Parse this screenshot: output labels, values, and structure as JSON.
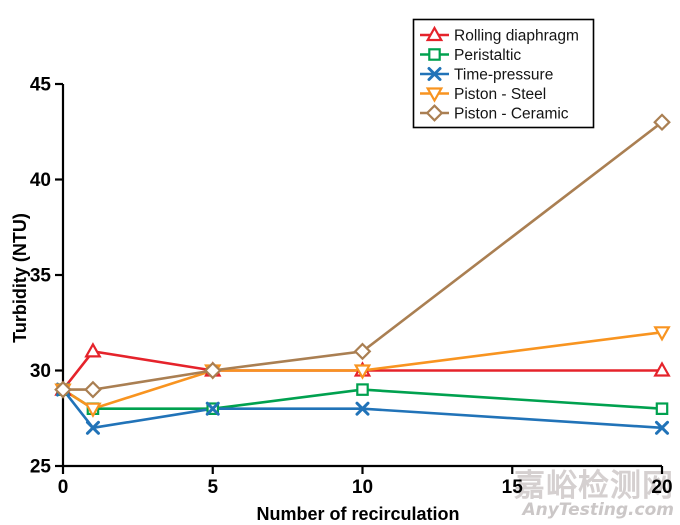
{
  "watermark": {
    "line1": "嘉峪检测网",
    "line2": "AnyTesting.com"
  },
  "chart_data": {
    "type": "line",
    "title": "",
    "xlabel": "Number of recirculation",
    "ylabel": "Turbidity (NTU)",
    "x": [
      0,
      1,
      5,
      10,
      20
    ],
    "xlim": [
      0,
      20
    ],
    "ylim": [
      25,
      45
    ],
    "xticks": [
      0,
      5,
      10,
      15,
      20
    ],
    "yticks": [
      25,
      30,
      35,
      40,
      45
    ],
    "grid": false,
    "legend_position": "top-right-inside",
    "axis_color": "#000000",
    "series": [
      {
        "name": "Rolling diaphragm",
        "color": "#e5232b",
        "marker": "triangle-up",
        "values": [
          29,
          31,
          30,
          30,
          30
        ]
      },
      {
        "name": "Peristaltic",
        "color": "#00a14f",
        "marker": "square",
        "values": [
          29,
          28,
          28,
          29,
          28
        ]
      },
      {
        "name": "Time-pressure",
        "color": "#2173b8",
        "marker": "x",
        "values": [
          29,
          27,
          28,
          28,
          27
        ]
      },
      {
        "name": "Piston - Steel",
        "color": "#f89420",
        "marker": "triangle-down",
        "values": [
          29,
          28,
          30,
          30,
          32
        ]
      },
      {
        "name": "Piston - Ceramic",
        "color": "#aa7f52",
        "marker": "diamond",
        "values": [
          29,
          29,
          30,
          31,
          43
        ]
      }
    ]
  }
}
